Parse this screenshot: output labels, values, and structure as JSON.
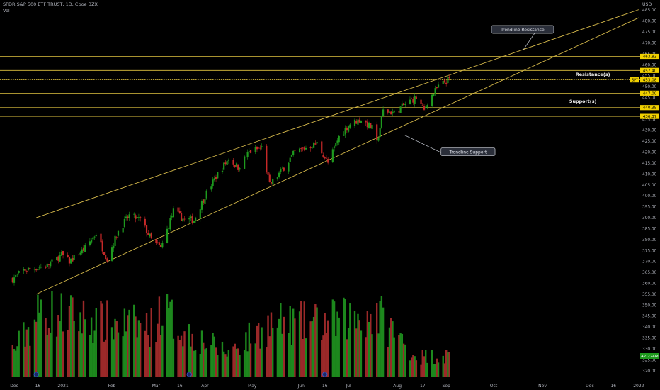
{
  "header": {
    "symbol_line": "SPDR S&P 500 ETF TRUST, 1D, Cboe BZX",
    "volume_label": "Vol"
  },
  "colors": {
    "background": "#000000",
    "up": "#26a69a",
    "up_bar": "#1e9a1e",
    "down": "#c62828",
    "level_line": "#e0c341",
    "trend_line": "#d4b84a",
    "price_tag": "#f0d000",
    "axis_text": "#b2b5be"
  },
  "chart_data": {
    "type": "candlestick",
    "y_axis": {
      "unit": "USD",
      "range": [
        317,
        488
      ],
      "ticks": [
        485,
        480,
        475,
        470,
        465,
        460,
        455,
        450,
        445,
        440,
        435,
        430,
        425,
        420,
        415,
        410,
        405,
        400,
        395,
        390,
        385,
        380,
        375,
        370,
        365,
        360,
        355,
        350,
        345,
        340,
        335,
        330,
        325,
        320
      ]
    },
    "x_axis": {
      "range": [
        "2020-12-01",
        "2022-01-06"
      ],
      "ticks": [
        {
          "label": "Dec",
          "date": "2020-12-01"
        },
        {
          "label": "16",
          "date": "2020-12-16"
        },
        {
          "label": "2021",
          "date": "2021-01-01"
        },
        {
          "label": "Feb",
          "date": "2021-02-01"
        },
        {
          "label": "Mar",
          "date": "2021-03-01"
        },
        {
          "label": "16",
          "date": "2021-03-16"
        },
        {
          "label": "Apr",
          "date": "2021-04-01"
        },
        {
          "label": "May",
          "date": "2021-05-01"
        },
        {
          "label": "Jun",
          "date": "2021-06-01"
        },
        {
          "label": "16",
          "date": "2021-06-16"
        },
        {
          "label": "Jul",
          "date": "2021-07-01"
        },
        {
          "label": "Aug",
          "date": "2021-08-01"
        },
        {
          "label": "17",
          "date": "2021-08-17"
        },
        {
          "label": "Sep",
          "date": "2021-09-01"
        },
        {
          "label": "Oct",
          "date": "2021-10-01"
        },
        {
          "label": "Nov",
          "date": "2021-11-01"
        },
        {
          "label": "Dec",
          "date": "2021-12-01"
        },
        {
          "label": "16",
          "date": "2021-12-16"
        },
        {
          "label": "2022",
          "date": "2022-01-01"
        }
      ]
    },
    "price_path": [
      {
        "date": "2020-11-30",
        "close": 362
      },
      {
        "date": "2020-12-07",
        "close": 366
      },
      {
        "date": "2020-12-15",
        "close": 367
      },
      {
        "date": "2020-12-22",
        "close": 368
      },
      {
        "date": "2020-12-31",
        "close": 373
      },
      {
        "date": "2021-01-05",
        "close": 370
      },
      {
        "date": "2021-01-15",
        "close": 376
      },
      {
        "date": "2021-01-22",
        "close": 383
      },
      {
        "date": "2021-01-29",
        "close": 371
      },
      {
        "date": "2021-02-05",
        "close": 384
      },
      {
        "date": "2021-02-12",
        "close": 391
      },
      {
        "date": "2021-02-19",
        "close": 389
      },
      {
        "date": "2021-02-26",
        "close": 380
      },
      {
        "date": "2021-03-04",
        "close": 376
      },
      {
        "date": "2021-03-12",
        "close": 393
      },
      {
        "date": "2021-03-19",
        "close": 389
      },
      {
        "date": "2021-03-25",
        "close": 389
      },
      {
        "date": "2021-04-01",
        "close": 400
      },
      {
        "date": "2021-04-09",
        "close": 410
      },
      {
        "date": "2021-04-16",
        "close": 417
      },
      {
        "date": "2021-04-22",
        "close": 413
      },
      {
        "date": "2021-04-29",
        "close": 420
      },
      {
        "date": "2021-05-07",
        "close": 422
      },
      {
        "date": "2021-05-12",
        "close": 405
      },
      {
        "date": "2021-05-19",
        "close": 411
      },
      {
        "date": "2021-05-28",
        "close": 420
      },
      {
        "date": "2021-06-04",
        "close": 422
      },
      {
        "date": "2021-06-11",
        "close": 424
      },
      {
        "date": "2021-06-18",
        "close": 415
      },
      {
        "date": "2021-06-25",
        "close": 427
      },
      {
        "date": "2021-07-02",
        "close": 433
      },
      {
        "date": "2021-07-09",
        "close": 435
      },
      {
        "date": "2021-07-16",
        "close": 431
      },
      {
        "date": "2021-07-19",
        "close": 424
      },
      {
        "date": "2021-07-23",
        "close": 439
      },
      {
        "date": "2021-07-30",
        "close": 438
      },
      {
        "date": "2021-08-06",
        "close": 442
      },
      {
        "date": "2021-08-13",
        "close": 445
      },
      {
        "date": "2021-08-18",
        "close": 439
      },
      {
        "date": "2021-08-20",
        "close": 443
      },
      {
        "date": "2021-08-27",
        "close": 450
      },
      {
        "date": "2021-09-02",
        "close": 453
      },
      {
        "date": "2021-09-03",
        "close": 453.08
      }
    ],
    "volume_path": [
      {
        "date": "2020-12-01",
        "value": 60
      },
      {
        "date": "2020-12-18",
        "value": 145
      },
      {
        "date": "2021-01-27",
        "value": 120
      },
      {
        "date": "2021-02-26",
        "value": 110
      },
      {
        "date": "2021-03-04",
        "value": 150
      },
      {
        "date": "2021-03-19",
        "value": 100
      },
      {
        "date": "2021-04-15",
        "value": 55
      },
      {
        "date": "2021-05-12",
        "value": 115
      },
      {
        "date": "2021-06-18",
        "value": 120
      },
      {
        "date": "2021-07-19",
        "value": 140
      },
      {
        "date": "2021-08-13",
        "value": 45
      },
      {
        "date": "2021-09-03",
        "value": 47.23
      }
    ],
    "last_volume_label": "47.224M",
    "last_price_symbol": "SPY",
    "horizontal_levels": [
      {
        "value": 463.83,
        "label": "463.83",
        "style": "solid"
      },
      {
        "value": 457.4,
        "label": "457.40",
        "style": "solid"
      },
      {
        "value": 453.38,
        "label": "453.38",
        "style": "solid"
      },
      {
        "value": 453.08,
        "label": "453.08",
        "style": "dotted"
      },
      {
        "value": 447.0,
        "label": "447.00",
        "style": "solid"
      },
      {
        "value": 440.39,
        "label": "440.39",
        "style": "solid"
      },
      {
        "value": 436.37,
        "label": "436.37",
        "style": "solid"
      }
    ],
    "trendlines": [
      {
        "name": "resistance",
        "from": {
          "date": "2020-12-15",
          "price": 390
        },
        "to": {
          "date": "2022-01-01",
          "price": 485.2
        }
      },
      {
        "name": "support",
        "from": {
          "date": "2020-12-15",
          "price": 355
        },
        "to": {
          "date": "2022-01-01",
          "price": 481.5
        }
      }
    ],
    "annotations": [
      {
        "id": "trendline-resistance",
        "text": "Trendline Resistance",
        "boxed": true,
        "date": "2021-10-01",
        "price": 476,
        "arrow_to": {
          "date": "2021-10-20",
          "price": 467
        }
      },
      {
        "id": "resistance-label",
        "text": "Resistance(s)",
        "boxed": false,
        "date": "2021-11-22",
        "price": 455.5
      },
      {
        "id": "support-label",
        "text": "Support(s)",
        "boxed": false,
        "date": "2021-11-18",
        "price": 443.3
      },
      {
        "id": "trendline-support",
        "text": "Trendline Support",
        "boxed": true,
        "date": "2021-08-30",
        "price": 420,
        "arrow_to": {
          "date": "2021-08-05",
          "price": 428
        }
      }
    ],
    "event_markers": [
      "2020-12-15",
      "2021-03-22",
      "2021-06-16"
    ]
  }
}
